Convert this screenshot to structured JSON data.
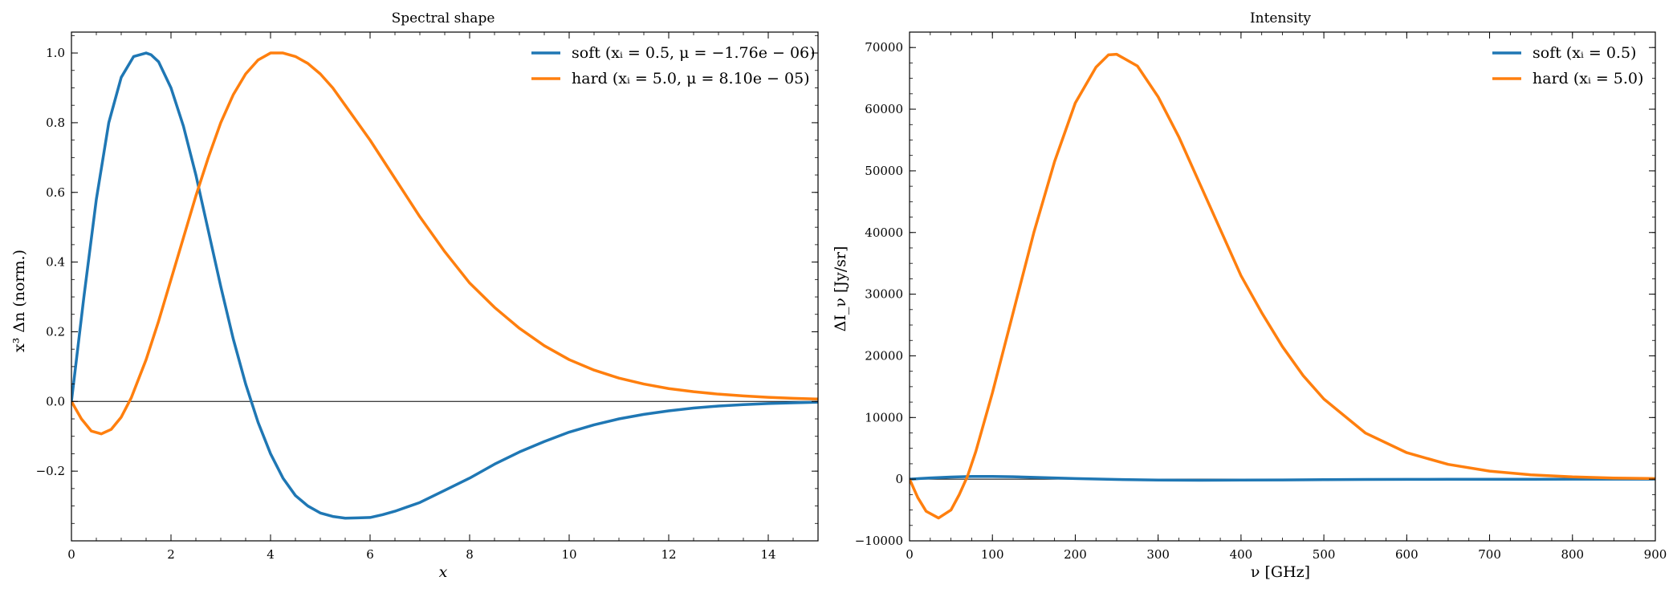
{
  "chart_data": [
    {
      "type": "line",
      "title": "Spectral shape",
      "xlabel": "x",
      "ylabel": "x³ Δn (norm.)",
      "xlim": [
        0,
        15
      ],
      "ylim": [
        -0.4,
        1.06
      ],
      "xticks": [
        0,
        2,
        4,
        6,
        8,
        10,
        12,
        14
      ],
      "xtick_labels": [
        "0",
        "2",
        "4",
        "6",
        "8",
        "10",
        "12",
        "14"
      ],
      "yticks": [
        -0.2,
        0.0,
        0.2,
        0.4,
        0.6,
        0.8,
        1.0
      ],
      "ytick_labels": [
        "−0.2",
        "0.0",
        "0.2",
        "0.4",
        "0.6",
        "0.8",
        "1.0"
      ],
      "zero_line": true,
      "grid": false,
      "legend_position": "top-right",
      "series": [
        {
          "name": "soft (xᵢ = 0.5, μ = −1.76e − 06)",
          "color": "#1f77b4",
          "x": [
            0,
            0.25,
            0.5,
            0.75,
            1.0,
            1.25,
            1.5,
            1.6,
            1.75,
            2.0,
            2.25,
            2.5,
            2.75,
            3.0,
            3.25,
            3.5,
            3.75,
            4.0,
            4.25,
            4.5,
            4.75,
            5.0,
            5.25,
            5.5,
            5.75,
            6.0,
            6.25,
            6.5,
            7.0,
            7.5,
            8.0,
            8.5,
            9.0,
            9.5,
            10.0,
            10.5,
            11.0,
            11.5,
            12.0,
            12.5,
            13.0,
            13.5,
            14.0,
            14.5,
            15.0
          ],
          "y": [
            0.0,
            0.3,
            0.58,
            0.8,
            0.93,
            0.99,
            1.0,
            0.995,
            0.975,
            0.9,
            0.79,
            0.65,
            0.49,
            0.33,
            0.18,
            0.05,
            -0.06,
            -0.15,
            -0.22,
            -0.27,
            -0.3,
            -0.32,
            -0.33,
            -0.335,
            -0.334,
            -0.333,
            -0.325,
            -0.315,
            -0.29,
            -0.255,
            -0.22,
            -0.18,
            -0.145,
            -0.115,
            -0.088,
            -0.067,
            -0.05,
            -0.037,
            -0.027,
            -0.019,
            -0.013,
            -0.009,
            -0.006,
            -0.004,
            -0.002
          ]
        },
        {
          "name": "hard (xᵢ = 5.0, μ = 8.10e − 05)",
          "color": "#ff7f0e",
          "x": [
            0,
            0.2,
            0.4,
            0.6,
            0.8,
            1.0,
            1.2,
            1.5,
            1.75,
            2.0,
            2.25,
            2.5,
            2.75,
            3.0,
            3.25,
            3.5,
            3.75,
            4.0,
            4.25,
            4.5,
            4.75,
            5.0,
            5.25,
            5.5,
            5.75,
            6.0,
            6.5,
            7.0,
            7.5,
            8.0,
            8.5,
            9.0,
            9.5,
            10.0,
            10.5,
            11.0,
            11.5,
            12.0,
            12.5,
            13.0,
            13.5,
            14.0,
            14.5,
            15.0
          ],
          "y": [
            0.0,
            -0.05,
            -0.085,
            -0.093,
            -0.08,
            -0.045,
            0.01,
            0.12,
            0.23,
            0.35,
            0.47,
            0.59,
            0.7,
            0.8,
            0.88,
            0.94,
            0.98,
            1.0,
            1.0,
            0.99,
            0.97,
            0.94,
            0.9,
            0.85,
            0.8,
            0.75,
            0.64,
            0.53,
            0.43,
            0.34,
            0.27,
            0.21,
            0.16,
            0.12,
            0.09,
            0.067,
            0.05,
            0.037,
            0.028,
            0.021,
            0.016,
            0.012,
            0.009,
            0.007
          ]
        }
      ]
    },
    {
      "type": "line",
      "title": "Intensity",
      "xlabel": "ν [GHz]",
      "ylabel": "ΔI_ν [Jy/sr]",
      "xlim": [
        0,
        900
      ],
      "ylim": [
        -10000,
        72500
      ],
      "xticks": [
        0,
        100,
        200,
        300,
        400,
        500,
        600,
        700,
        800,
        900
      ],
      "xtick_labels": [
        "0",
        "100",
        "200",
        "300",
        "400",
        "500",
        "600",
        "700",
        "800",
        "900"
      ],
      "yticks": [
        -10000,
        0,
        10000,
        20000,
        30000,
        40000,
        50000,
        60000,
        70000
      ],
      "ytick_labels": [
        "−10000",
        "0",
        "10000",
        "20000",
        "30000",
        "40000",
        "50000",
        "60000",
        "70000"
      ],
      "zero_line": true,
      "grid": false,
      "legend_position": "top-right",
      "series": [
        {
          "name": "soft (xᵢ = 0.5)",
          "color": "#1f77b4",
          "x": [
            0,
            25,
            50,
            75,
            100,
            125,
            150,
            175,
            200,
            250,
            300,
            350,
            400,
            450,
            500,
            550,
            600,
            650,
            700,
            750,
            800,
            850,
            900
          ],
          "y": [
            0,
            200,
            350,
            450,
            450,
            400,
            300,
            200,
            100,
            -50,
            -150,
            -180,
            -150,
            -120,
            -80,
            -50,
            -30,
            -15,
            -10,
            -5,
            -2,
            -1,
            0
          ]
        },
        {
          "name": "hard (xᵢ = 5.0)",
          "color": "#ff7f0e",
          "x": [
            0,
            10,
            20,
            35,
            50,
            60,
            70,
            80,
            100,
            125,
            150,
            175,
            200,
            225,
            240,
            250,
            275,
            300,
            325,
            350,
            375,
            400,
            425,
            450,
            475,
            500,
            550,
            600,
            650,
            700,
            750,
            800,
            850,
            900
          ],
          "y": [
            0,
            -3000,
            -5200,
            -6300,
            -5000,
            -2500,
            500,
            4500,
            14000,
            27000,
            40000,
            51500,
            61000,
            66800,
            68800,
            68900,
            67000,
            62000,
            55500,
            48000,
            40500,
            33000,
            27000,
            21500,
            16800,
            13000,
            7500,
            4300,
            2400,
            1300,
            700,
            370,
            190,
            100
          ]
        }
      ]
    }
  ]
}
